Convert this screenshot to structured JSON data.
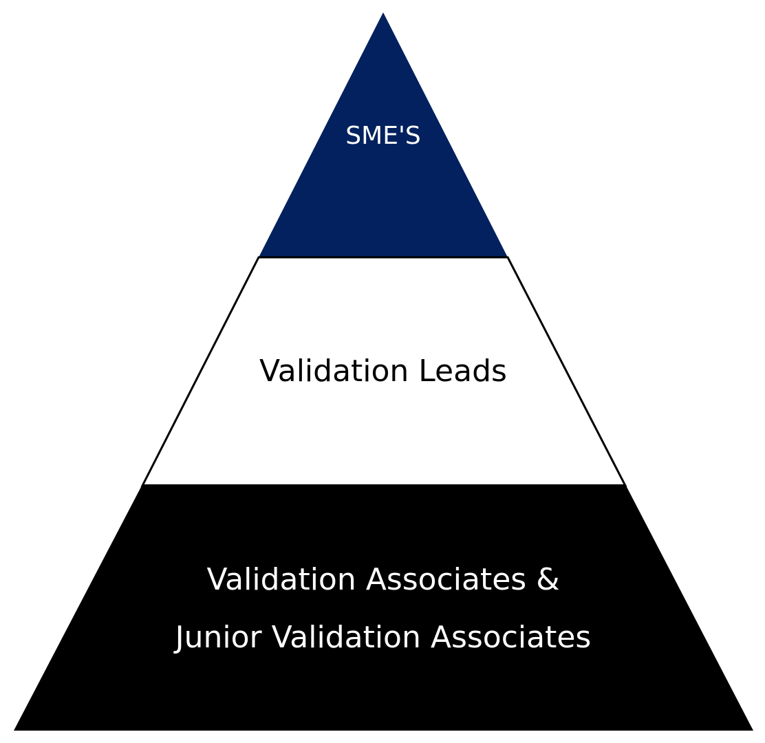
{
  "pyramid": {
    "tiers": [
      {
        "label": "SME'S",
        "fill": "#02215E",
        "text_color": "#FFFFFF"
      },
      {
        "label": "Validation Leads",
        "fill": "#FFFFFF",
        "text_color": "#000000"
      },
      {
        "label_line1": "Validation Associates &",
        "label_line2": "Junior Validation Associates",
        "fill": "#000000",
        "text_color": "#FFFFFF"
      }
    ],
    "outline_color": "#000000"
  }
}
